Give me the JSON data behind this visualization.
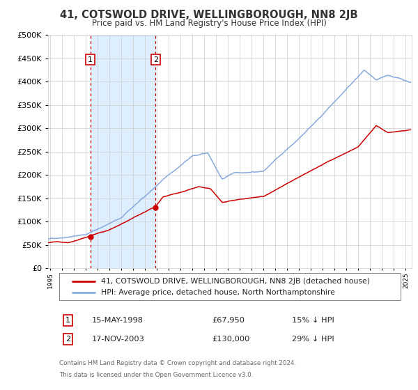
{
  "title": "41, COTSWOLD DRIVE, WELLINGBOROUGH, NN8 2JB",
  "subtitle": "Price paid vs. HM Land Registry's House Price Index (HPI)",
  "legend_line1": "41, COTSWOLD DRIVE, WELLINGBOROUGH, NN8 2JB (detached house)",
  "legend_line2": "HPI: Average price, detached house, North Northamptonshire",
  "annotation1_date": "15-MAY-1998",
  "annotation1_price": "£67,950",
  "annotation1_hpi": "15% ↓ HPI",
  "annotation2_date": "17-NOV-2003",
  "annotation2_price": "£130,000",
  "annotation2_hpi": "29% ↓ HPI",
  "price_line_color": "#cc0000",
  "hpi_line_color": "#88aadd",
  "shade_color": "#ddeeff",
  "vline_color": "#cc0000",
  "point_color": "#cc0000",
  "grid_color": "#cccccc",
  "background_color": "#ffffff",
  "footnote_line1": "Contains HM Land Registry data © Crown copyright and database right 2024.",
  "footnote_line2": "This data is licensed under the Open Government Licence v3.0.",
  "ylim": [
    0,
    500000
  ],
  "yticks": [
    0,
    50000,
    100000,
    150000,
    200000,
    250000,
    300000,
    350000,
    400000,
    450000,
    500000
  ],
  "sale1_x": 1998.37,
  "sale1_y": 67950,
  "sale2_x": 2003.88,
  "sale2_y": 130000,
  "xmin": 1994.8,
  "xmax": 2025.5,
  "xticks_start": 1995,
  "xticks_end": 2025
}
